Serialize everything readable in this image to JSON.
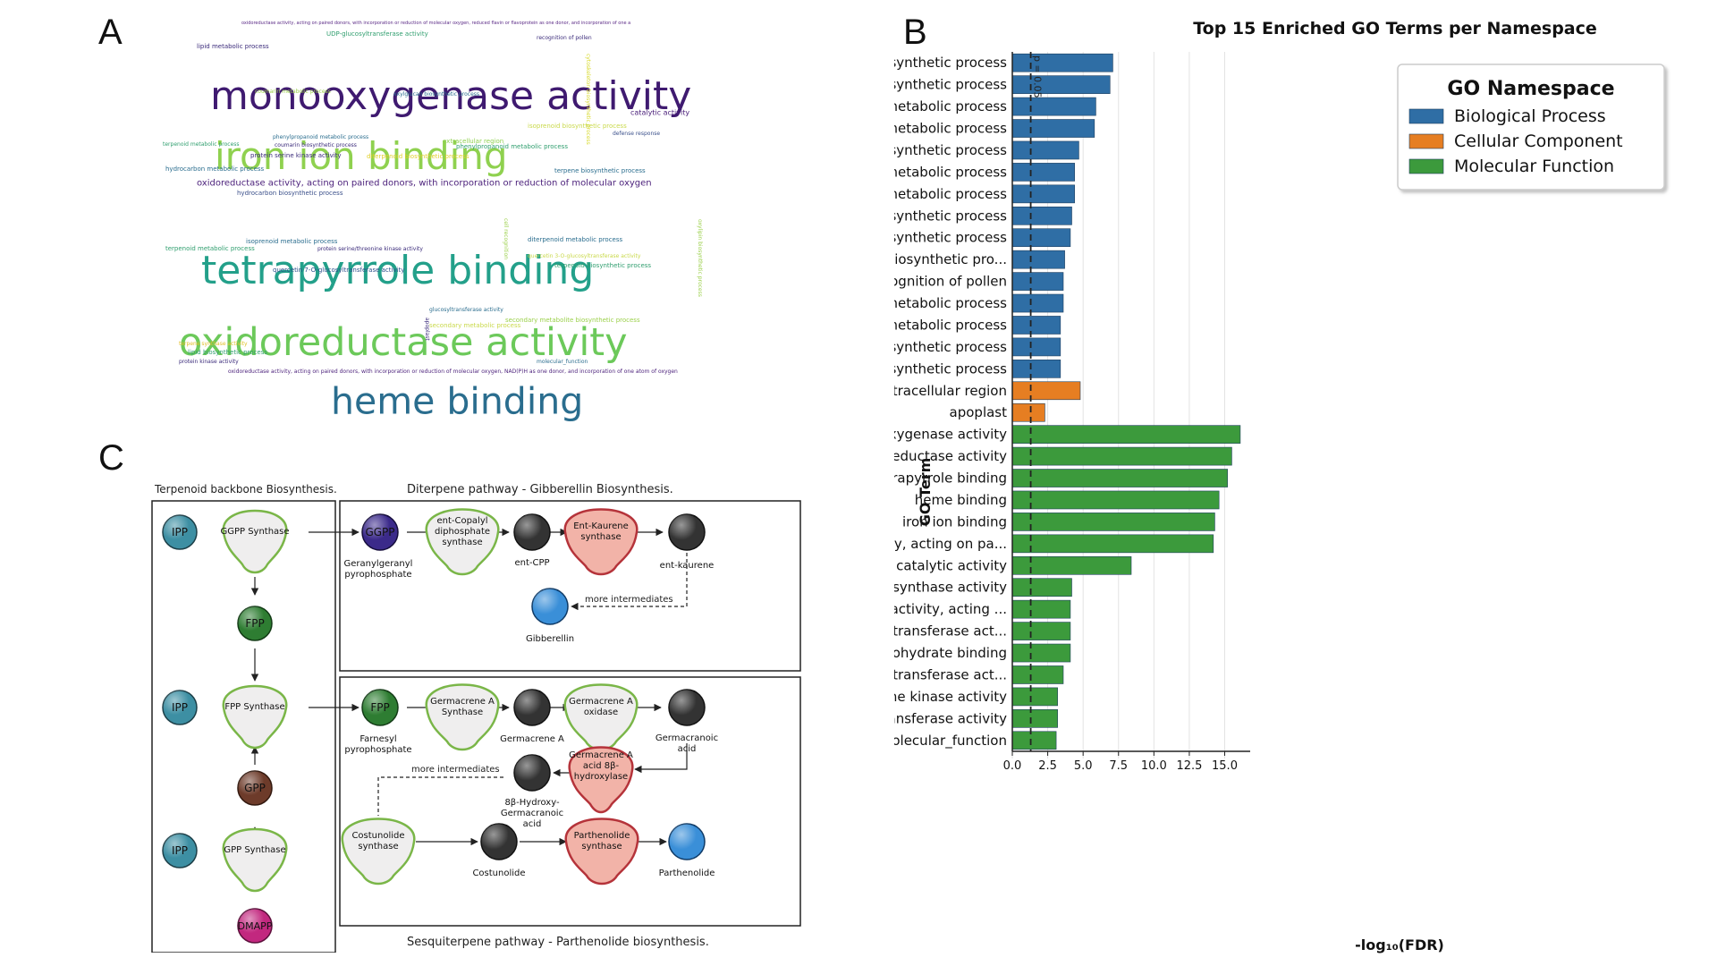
{
  "panels": {
    "a": "A",
    "b": "B",
    "c": "C"
  },
  "wordcloud": {
    "words": [
      {
        "text": "oxidoreductase activity, acting on paired donors, with incorporation or reduction of molecular oxygen, reduced flavin or flavoprotein as one donor, and incorporation of one a",
        "color": "#5b2a86"
      },
      {
        "text": "UDP-glucosyltransferase activity",
        "color": "#2f9e6e"
      },
      {
        "text": "recognition of pollen",
        "color": "#3a2a7a"
      },
      {
        "text": "lipid metabolic process",
        "color": "#3a2a7a"
      },
      {
        "text": "monooxygenase activity",
        "color": "#3f1a70"
      },
      {
        "text": "carbon-oxygen lyase activity, acting on phosphates",
        "color": "#2b8a8a"
      },
      {
        "text": "coumarin metabolic process",
        "color": "#9bd04a"
      },
      {
        "text": "xxylglucan biosynthetic process",
        "color": "#2a6d8e"
      },
      {
        "text": "cytoskeleton biosynthetic process",
        "color": "#d7d92a"
      },
      {
        "text": "iron ion binding",
        "color": "#8fd14f"
      },
      {
        "text": "catalytic activity",
        "color": "#4a1f7a"
      },
      {
        "text": "isoprenoid biosynthetic process",
        "color": "#c9d94a"
      },
      {
        "text": "defense response",
        "color": "#3a4f8a"
      },
      {
        "text": "phenylpropanoid metabolic process",
        "color": "#2a6d8e"
      },
      {
        "text": "extracellular region",
        "color": "#8fd14f"
      },
      {
        "text": "terpenoid metabolic process",
        "color": "#2f9e6e"
      },
      {
        "text": "coumarin biosynthetic process",
        "color": "#3a2a7a"
      },
      {
        "text": "phenylpropanoid metabolic process",
        "color": "#2f9e6e"
      },
      {
        "text": "protein serine kinase activity",
        "color": "#3a2a7a"
      },
      {
        "text": "diterpenoid biosynthetic process",
        "color": "#e0d02a"
      },
      {
        "text": "hydrocarbon metabolic process",
        "color": "#2a6d8e"
      },
      {
        "text": "terpene biosynthetic process",
        "color": "#2a6d8e"
      },
      {
        "text": "carbon-oxygen lyase activity",
        "color": "#2b8a8a"
      },
      {
        "text": "oxidoreductase activity, acting on paired donors, with incorporation or reduction of molecular oxygen",
        "color": "#4a1f7a"
      },
      {
        "text": "hydrocarbon biosynthetic process",
        "color": "#3a4f8a"
      },
      {
        "text": "tetrapyrrole binding",
        "color": "#23a08a"
      },
      {
        "text": "isoprenoid metabolic process",
        "color": "#2a6d8e"
      },
      {
        "text": "terpenoid metabolic process",
        "color": "#2f9e6e"
      },
      {
        "text": "protein serine/threonine kinase activity",
        "color": "#3a2a7a"
      },
      {
        "text": "diterpenoid metabolic process",
        "color": "#2a6d8e"
      },
      {
        "text": "quercetin 3-O-glucosyltransferase activity",
        "color": "#c9d94a"
      },
      {
        "text": "terpenoid biosynthetic process",
        "color": "#2f9e6e"
      },
      {
        "text": "cell recognition",
        "color": "#9bd04a"
      },
      {
        "text": "quercetin 7-O-glucosyltransferase activity",
        "color": "#2a4f8a"
      },
      {
        "text": "oxylipin biosynthetic process",
        "color": "#9bd04a"
      },
      {
        "text": "oxidoreductase activity",
        "color": "#6cc95a"
      },
      {
        "text": "glucosyltransferase activity",
        "color": "#2a6d8e"
      },
      {
        "text": "apoplast",
        "color": "#3a2a7a"
      },
      {
        "text": "secondary metabolic process",
        "color": "#c9d94a"
      },
      {
        "text": "secondary metabolite biosynthetic process",
        "color": "#9bd04a"
      },
      {
        "text": "heme binding",
        "color": "#2a6d8e"
      },
      {
        "text": "terpene synthase activity",
        "color": "#e0c02a"
      },
      {
        "text": "lipid biosynthetic process",
        "color": "#2f9e6e"
      },
      {
        "text": "protein kinase activity",
        "color": "#3a2a7a"
      },
      {
        "text": "molecular_function",
        "color": "#2a6d8e"
      },
      {
        "text": "oxidoreductase activity, acting on paired donors, with incorporation or reduction of molecular oxygen, NAD(P)H as one donor, and incorporation of one atom of oxygen",
        "color": "#4a1f7a"
      }
    ]
  },
  "pathway": {
    "left_title": "Terpenoid backbone Biosynthesis.",
    "top_title": "Diterpene pathway -  Gibberellin Biosynthesis.",
    "bottom_caption": "Sesquiterpene pathway - Parthenolide biosynthesis.",
    "more_intermediates": "more intermediates",
    "metabolites": {
      "ipp": "IPP",
      "fpp": "FPP",
      "gpp": "GPP",
      "dmapp": "DMAPP",
      "ggpp": "GGPP"
    },
    "enzymes": {
      "ggpp_synthase": "GGPP Synthase",
      "fpp_synthase": "FPP Synthase",
      "gpp_synthase": "GPP Synthase",
      "ent_copalyl": [
        "ent-Copalyl",
        "diphosphate",
        "synthase"
      ],
      "ent_kaurene_synthase": [
        "Ent-Kaurene",
        "synthase"
      ],
      "germacrene_a_synthase": [
        "Germacrene A",
        "Synthase"
      ],
      "germacrene_a_oxidase": [
        "Germacrene A",
        "oxidase"
      ],
      "germacrene_a_hydroxylase": [
        "Germacrene A",
        "acid 8β-",
        "hydroxylase"
      ],
      "costunolide_synthase": [
        "Costunolide",
        "synthase"
      ],
      "parthenolide_synthase": [
        "Parthenolide",
        "synthase"
      ]
    },
    "labels": {
      "ggpp": [
        "Geranylgeranyl",
        "pyrophosphate"
      ],
      "ent_cpp": "ent-CPP",
      "ent_kaurene": "ent-kaurene",
      "gibberellin": "Gibberellin",
      "farnesyl": [
        "Farnesyl",
        "pyrophosphate"
      ],
      "germacrene_a": "Germacrene A",
      "germacranoic": [
        "Germacranoic",
        "acid"
      ],
      "hydroxy": [
        "8β-Hydroxy-",
        "Germacranoic",
        "acid"
      ],
      "costunolide": "Costunolide",
      "parthenolide": "Parthenolide"
    },
    "colors": {
      "ipp": "#3d8fa3",
      "fpp": "#2e7d32",
      "gpp": "#6d3b2a",
      "dmapp": "#c2287f",
      "ggpp": "#3b2a8a",
      "dark": "#333333",
      "gibberellin": "#3a8fd8",
      "enzyme_green_fill": "#efeeee",
      "enzyme_green_stroke": "#7ab648",
      "enzyme_red_fill": "#f2b3a8",
      "enzyme_red_stroke": "#b5333a"
    }
  },
  "chart_data": {
    "type": "bar",
    "orientation": "horizontal",
    "title": "Top 15 Enriched GO Terms per Namespace",
    "xlabel": "-log₁₀(FDR)",
    "ylabel": "GO Term",
    "xlim": [
      0,
      16.8
    ],
    "xticks": [
      "0.0",
      "2.5",
      "5.0",
      "7.5",
      "10.0",
      "12.5",
      "15.0"
    ],
    "xtick_values": [
      0,
      2.5,
      5,
      7.5,
      10,
      12.5,
      15
    ],
    "threshold": {
      "value": 1.3,
      "label": "p = 0.05"
    },
    "legend": {
      "title": "GO Namespace",
      "placement": "top-right",
      "entries": [
        {
          "name": "Biological Process",
          "color": "#2f6ea5"
        },
        {
          "name": "Cellular Component",
          "color": "#e67e22"
        },
        {
          "name": "Molecular Function",
          "color": "#3c9a3c"
        }
      ]
    },
    "categories": [
      {
        "term": "terpenoid biosynthetic process",
        "value": 7.1,
        "namespace": 0
      },
      {
        "term": "isoprenoid biosynthetic process",
        "value": 6.9,
        "namespace": 0
      },
      {
        "term": "terpenoid metabolic process",
        "value": 5.9,
        "namespace": 0
      },
      {
        "term": "isoprenoid metabolic process",
        "value": 5.8,
        "namespace": 0
      },
      {
        "term": "hydrocarbon biosynthetic process",
        "value": 4.7,
        "namespace": 0
      },
      {
        "term": "hydrocarbon metabolic process",
        "value": 4.4,
        "namespace": 0
      },
      {
        "term": "lipid metabolic process",
        "value": 4.4,
        "namespace": 0
      },
      {
        "term": "diterpenoid biosynthetic process",
        "value": 4.2,
        "namespace": 0
      },
      {
        "term": "phenylpropanoid biosynthetic process",
        "value": 4.1,
        "namespace": 0
      },
      {
        "term": "secondary metabolite biosynthetic pro...",
        "value": 3.7,
        "namespace": 0
      },
      {
        "term": "recognition of pollen",
        "value": 3.6,
        "namespace": 0
      },
      {
        "term": "diterpenoid metabolic process",
        "value": 3.6,
        "namespace": 0
      },
      {
        "term": "secondary metabolic process",
        "value": 3.4,
        "namespace": 0
      },
      {
        "term": "lipid biosynthetic process",
        "value": 3.4,
        "namespace": 0
      },
      {
        "term": "terpene biosynthetic process",
        "value": 3.4,
        "namespace": 0
      },
      {
        "term": "extracellular region",
        "value": 4.8,
        "namespace": 1
      },
      {
        "term": "apoplast",
        "value": 2.3,
        "namespace": 1
      },
      {
        "term": "monooxygenase activity",
        "value": 16.1,
        "namespace": 2
      },
      {
        "term": "oxidoreductase activity",
        "value": 15.5,
        "namespace": 2
      },
      {
        "term": "tetrapyrrole binding",
        "value": 15.2,
        "namespace": 2
      },
      {
        "term": "heme binding",
        "value": 14.6,
        "namespace": 2
      },
      {
        "term": "iron ion binding",
        "value": 14.3,
        "namespace": 2
      },
      {
        "term": "oxidoreductase activity, acting on pa...",
        "value": 14.2,
        "namespace": 2
      },
      {
        "term": "catalytic activity",
        "value": 8.4,
        "namespace": 2
      },
      {
        "term": "terpene synthase activity",
        "value": 4.2,
        "namespace": 2
      },
      {
        "term": "carbon-oxygen lyase activity, acting ...",
        "value": 4.1,
        "namespace": 2
      },
      {
        "term": "quercetin 3-O-glucosyltransferase act...",
        "value": 4.1,
        "namespace": 2
      },
      {
        "term": "carbohydrate binding",
        "value": 4.1,
        "namespace": 2
      },
      {
        "term": "quercetin 7-O-glucosyltransferase act...",
        "value": 3.6,
        "namespace": 2
      },
      {
        "term": "protein serine kinase activity",
        "value": 3.2,
        "namespace": 2
      },
      {
        "term": "glucosyltransferase activity",
        "value": 3.2,
        "namespace": 2
      },
      {
        "term": "molecular_function",
        "value": 3.1,
        "namespace": 2
      }
    ]
  }
}
